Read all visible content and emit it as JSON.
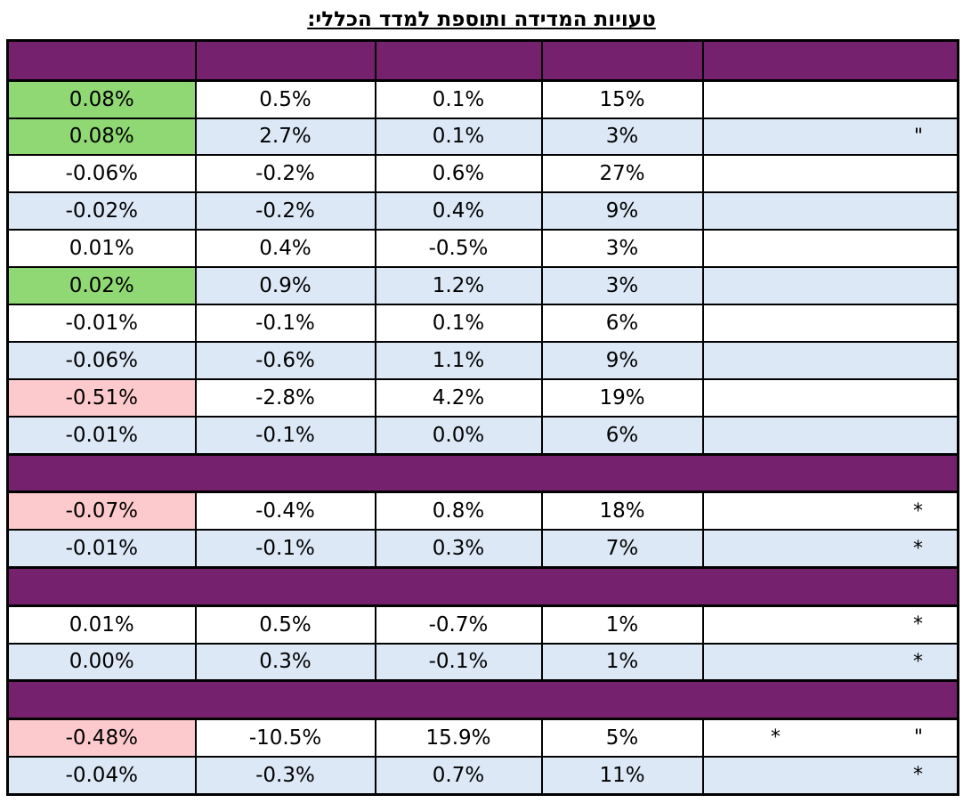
{
  "title": "טעויות המדידה ותוספת למדד הכללי:",
  "colors": {
    "header_purple": "#76216e",
    "row_blue": "#dce8f6",
    "positive_green": "#8fd873",
    "negative_pink": "#fcc9cc"
  },
  "header": [
    "",
    "",
    "",
    "",
    ""
  ],
  "rows": [
    {
      "name": "",
      "c4": "15%",
      "c3": "0.1%",
      "c2": "0.5%",
      "c1": "0.08%"
    },
    {
      "name": "\"",
      "c4": "3%",
      "c3": "0.1%",
      "c2": "2.7%",
      "c1": "0.08%"
    },
    {
      "name": "",
      "c4": "27%",
      "c3": "0.6%",
      "c2": "-0.2%",
      "c1": "-0.06%"
    },
    {
      "name": "",
      "c4": "9%",
      "c3": "0.4%",
      "c2": "-0.2%",
      "c1": "-0.02%"
    },
    {
      "name": "",
      "c4": "3%",
      "c3": "-0.5%",
      "c2": "0.4%",
      "c1": "0.01%"
    },
    {
      "name": "",
      "c4": "3%",
      "c3": "1.2%",
      "c2": "0.9%",
      "c1": "0.02%"
    },
    {
      "name": "",
      "c4": "6%",
      "c3": "0.1%",
      "c2": "-0.1%",
      "c1": "-0.01%"
    },
    {
      "name": "",
      "c4": "9%",
      "c3": "1.1%",
      "c2": "-0.6%",
      "c1": "-0.06%"
    },
    {
      "name": "",
      "c4": "19%",
      "c3": "4.2%",
      "c2": "-2.8%",
      "c1": "-0.51%"
    },
    {
      "name": "",
      "c4": "6%",
      "c3": "0.0%",
      "c2": "-0.1%",
      "c1": "-0.01%"
    },
    {
      "name": "*",
      "c4": "18%",
      "c3": "0.8%",
      "c2": "-0.4%",
      "c1": "-0.07%"
    },
    {
      "name": "*",
      "c4": "7%",
      "c3": "0.3%",
      "c2": "-0.1%",
      "c1": "-0.01%"
    },
    {
      "name": "*",
      "c4": "1%",
      "c3": "-0.7%",
      "c2": "0.5%",
      "c1": "0.01%"
    },
    {
      "name": "*",
      "c4": "1%",
      "c3": "-0.1%",
      "c2": "0.3%",
      "c1": "0.00%"
    },
    {
      "name": "*",
      "extra": "\"",
      "c4": "5%",
      "c3": "15.9%",
      "c2": "-10.5%",
      "c1": "-0.48%"
    },
    {
      "name": "*",
      "c4": "11%",
      "c3": "0.7%",
      "c2": "-0.3%",
      "c1": "-0.04%"
    }
  ]
}
